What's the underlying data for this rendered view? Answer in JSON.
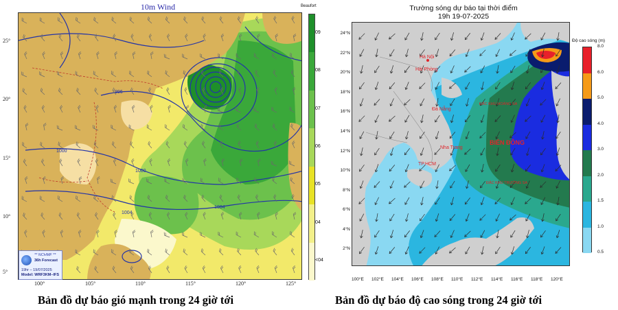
{
  "wind_map": {
    "title": "10m Wind",
    "lat_ticks": [
      "25°",
      "20°",
      "15°",
      "10°",
      "5°"
    ],
    "lon_ticks": [
      "100°",
      "105°",
      "110°",
      "115°",
      "120°",
      "125°"
    ],
    "isobars": [
      "996",
      "1000",
      "1000",
      "1004",
      "1004"
    ],
    "beaufort": {
      "title": "Beaufort",
      "levels": [
        "09",
        "08",
        "07",
        "06",
        "05",
        "04",
        "<04"
      ],
      "colors": [
        "#1e8f2a",
        "#3aa83a",
        "#6cc14c",
        "#a8d85a",
        "#e8e226",
        "#f3f08a",
        "#fbf8cc"
      ]
    },
    "info": {
      "org": "** NCHMF **",
      "forecast": "36h Forecast",
      "datetime": "19hr – 19/07/2025",
      "model": "Model: WRF3KM–IFS"
    },
    "colors": {
      "land": "#d9b25a",
      "sea_calm": "#f2e96a",
      "isobar": "#2233a8",
      "border": "#c0392b"
    }
  },
  "wave_map": {
    "title_line1": "Trường sóng dự báo tại thời điểm",
    "title_line2": "19h 19-07-2025",
    "lat_ticks": [
      "24°N",
      "22°N",
      "20°N",
      "18°N",
      "16°N",
      "14°N",
      "12°N",
      "10°N",
      "8°N",
      "6°N",
      "4°N",
      "2°N"
    ],
    "lon_ticks": [
      "100°E",
      "102°E",
      "104°E",
      "106°E",
      "108°E",
      "110°E",
      "112°E",
      "114°E",
      "116°E",
      "118°E",
      "120°E"
    ],
    "places": {
      "hanoi": "Hà Nội",
      "haiphong": "Hải Phòng",
      "danang": "Đà Nẵng",
      "nhatrang": "Nha Trang",
      "tphcm": "TP.HCM",
      "bien_dong": "BIỂN ĐÔNG",
      "hoang_sa": "ĐẶC KHU HOÀNG SA",
      "truong_sa": "ĐẶC KHU TRƯỜNG SA"
    },
    "legend": {
      "title": "Độ cao sóng (m)",
      "levels": [
        "8.0",
        "6.0",
        "5.0",
        "4.0",
        "3.0",
        "2.0",
        "1.5",
        "1.0",
        "0.5"
      ],
      "colors": [
        "#e8202a",
        "#f59a18",
        "#0a1c6e",
        "#1a2ce0",
        "#237a4e",
        "#2aa88e",
        "#2bb6e0",
        "#8ad8f2"
      ]
    },
    "colors": {
      "land": "#cfcfcf",
      "sea_low": "#8ad8f2",
      "sea_mid": "#2bb6e0"
    }
  },
  "captions": {
    "wind": "Bản đồ dự báo gió mạnh trong 24 giờ tới",
    "wave": "Bản đồ dự báo độ cao sóng trong 24 giờ tới"
  }
}
